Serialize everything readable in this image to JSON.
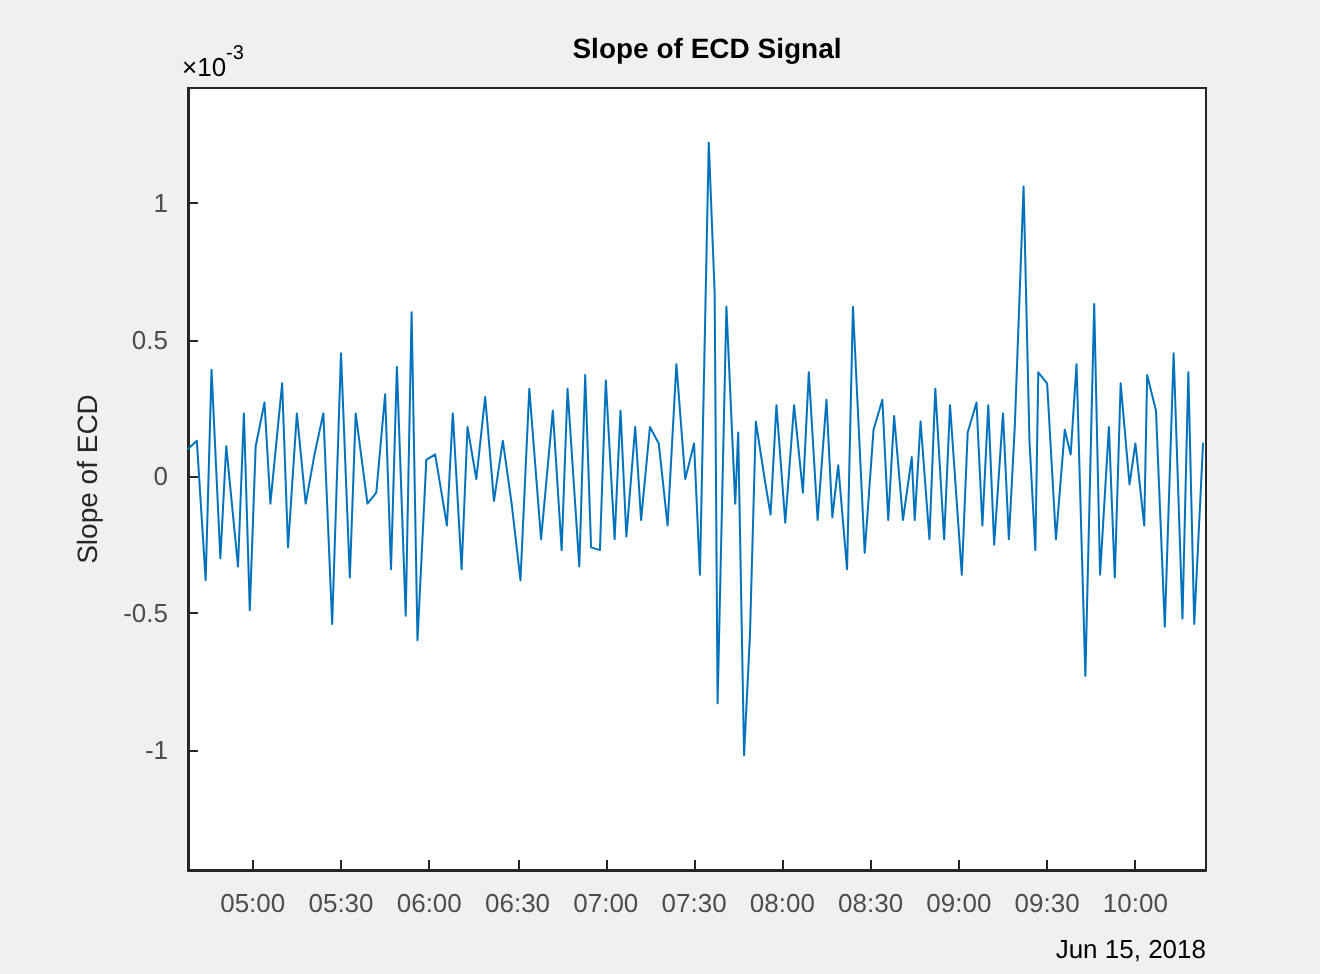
{
  "chart_data": {
    "type": "line",
    "title": "Slope of ECD Signal",
    "ylabel": "Slope of ECD",
    "annotations": [
      "×10$^{-3}$",
      "Jun 15, 2018"
    ],
    "x": [
      "2018-06-15T04:38",
      "2018-06-15T04:41",
      "2018-06-15T04:44",
      "2018-06-15T04:46",
      "2018-06-15T04:49",
      "2018-06-15T04:51",
      "2018-06-15T04:55",
      "2018-06-15T04:57",
      "2018-06-15T04:59",
      "2018-06-15T05:01",
      "2018-06-15T05:04",
      "2018-06-15T05:06",
      "2018-06-15T05:10",
      "2018-06-15T05:12",
      "2018-06-15T05:15",
      "2018-06-15T05:18",
      "2018-06-15T05:21",
      "2018-06-15T05:24",
      "2018-06-15T05:27",
      "2018-06-15T05:30",
      "2018-06-15T05:33",
      "2018-06-15T05:35",
      "2018-06-15T05:39",
      "2018-06-15T05:42",
      "2018-06-15T05:45",
      "2018-06-15T05:47",
      "2018-06-15T05:49",
      "2018-06-15T05:52",
      "2018-06-15T05:54",
      "2018-06-15T05:56",
      "2018-06-15T05:59",
      "2018-06-15T06:02",
      "2018-06-15T06:06",
      "2018-06-15T06:08",
      "2018-06-15T06:11",
      "2018-06-15T06:13",
      "2018-06-15T06:16",
      "2018-06-15T06:19",
      "2018-06-15T06:22",
      "2018-06-15T06:25",
      "2018-06-15T06:28",
      "2018-06-15T06:31",
      "2018-06-15T06:34",
      "2018-06-15T06:38",
      "2018-06-15T06:42",
      "2018-06-15T06:45",
      "2018-06-15T06:47",
      "2018-06-15T06:51",
      "2018-06-15T06:53",
      "2018-06-15T06:55",
      "2018-06-15T06:58",
      "2018-06-15T07:00",
      "2018-06-15T07:03",
      "2018-06-15T07:05",
      "2018-06-15T07:07",
      "2018-06-15T07:10",
      "2018-06-15T07:12",
      "2018-06-15T07:15",
      "2018-06-15T07:18",
      "2018-06-15T07:21",
      "2018-06-15T07:24",
      "2018-06-15T07:27",
      "2018-06-15T07:30",
      "2018-06-15T07:32",
      "2018-06-15T07:35",
      "2018-06-15T07:37",
      "2018-06-15T07:38",
      "2018-06-15T07:41",
      "2018-06-15T07:44",
      "2018-06-15T07:45",
      "2018-06-15T07:47",
      "2018-06-15T07:49",
      "2018-06-15T07:51",
      "2018-06-15T07:54",
      "2018-06-15T07:56",
      "2018-06-15T07:58",
      "2018-06-15T08:01",
      "2018-06-15T08:04",
      "2018-06-15T08:07",
      "2018-06-15T08:09",
      "2018-06-15T08:12",
      "2018-06-15T08:15",
      "2018-06-15T08:17",
      "2018-06-15T08:19",
      "2018-06-15T08:22",
      "2018-06-15T08:24",
      "2018-06-15T08:28",
      "2018-06-15T08:31",
      "2018-06-15T08:34",
      "2018-06-15T08:36",
      "2018-06-15T08:38",
      "2018-06-15T08:41",
      "2018-06-15T08:44",
      "2018-06-15T08:45",
      "2018-06-15T08:47",
      "2018-06-15T08:50",
      "2018-06-15T08:52",
      "2018-06-15T08:55",
      "2018-06-15T08:57",
      "2018-06-15T09:01",
      "2018-06-15T09:03",
      "2018-06-15T09:06",
      "2018-06-15T09:08",
      "2018-06-15T09:10",
      "2018-06-15T09:12",
      "2018-06-15T09:15",
      "2018-06-15T09:17",
      "2018-06-15T09:19",
      "2018-06-15T09:22",
      "2018-06-15T09:24",
      "2018-06-15T09:26",
      "2018-06-15T09:27",
      "2018-06-15T09:30",
      "2018-06-15T09:33",
      "2018-06-15T09:36",
      "2018-06-15T09:38",
      "2018-06-15T09:40",
      "2018-06-15T09:43",
      "2018-06-15T09:46",
      "2018-06-15T09:48",
      "2018-06-15T09:51",
      "2018-06-15T09:53",
      "2018-06-15T09:55",
      "2018-06-15T09:58",
      "2018-06-15T10:00",
      "2018-06-15T10:03",
      "2018-06-15T10:04",
      "2018-06-15T10:07",
      "2018-06-15T10:10",
      "2018-06-15T10:13",
      "2018-06-15T10:16",
      "2018-06-15T10:18",
      "2018-06-15T10:20",
      "2018-06-15T10:23"
    ],
    "series": [
      {
        "color": "#0072bd",
        "values": [
          0.1,
          0.13,
          -0.38,
          0.39,
          -0.3,
          0.11,
          -0.33,
          0.23,
          -0.49,
          0.11,
          0.27,
          -0.1,
          0.34,
          -0.26,
          0.23,
          -0.1,
          0.08,
          0.23,
          -0.54,
          0.45,
          -0.37,
          0.23,
          -0.1,
          -0.06,
          0.3,
          -0.34,
          0.4,
          -0.51,
          0.6,
          -0.6,
          0.06,
          0.08,
          -0.18,
          0.23,
          -0.34,
          0.18,
          -0.01,
          0.29,
          -0.09,
          0.13,
          -0.1,
          -0.38,
          0.32,
          -0.23,
          0.24,
          -0.27,
          0.32,
          -0.33,
          0.37,
          -0.26,
          -0.27,
          0.35,
          -0.23,
          0.24,
          -0.22,
          0.18,
          -0.16,
          0.18,
          0.12,
          -0.18,
          0.41,
          -0.01,
          0.12,
          -0.36,
          1.22,
          0.67,
          -0.83,
          0.62,
          -0.1,
          0.16,
          -1.02,
          -0.58,
          0.2,
          -0.01,
          -0.14,
          0.26,
          -0.17,
          0.26,
          -0.06,
          0.38,
          -0.16,
          0.28,
          -0.15,
          0.04,
          -0.34,
          0.62,
          -0.28,
          0.17,
          0.28,
          -0.16,
          0.22,
          -0.16,
          0.07,
          -0.16,
          0.2,
          -0.23,
          0.32,
          -0.23,
          0.26,
          -0.36,
          0.16,
          0.27,
          -0.18,
          0.26,
          -0.25,
          0.23,
          -0.23,
          0.18,
          1.06,
          0.13,
          -0.27,
          0.38,
          0.34,
          -0.23,
          0.17,
          0.08,
          0.41,
          -0.73,
          0.63,
          -0.36,
          0.18,
          -0.37,
          0.34,
          -0.03,
          0.12,
          -0.18,
          0.37,
          0.24,
          -0.55,
          0.45,
          -0.52,
          0.38,
          -0.54,
          0.12
        ]
      }
    ],
    "xlim": [
      "2018-06-15T04:38",
      "2018-06-15T10:24"
    ],
    "xticks": [
      {
        "value": "2018-06-15T05:00",
        "label": "05:00"
      },
      {
        "value": "2018-06-15T05:30",
        "label": "05:30"
      },
      {
        "value": "2018-06-15T06:00",
        "label": "06:00"
      },
      {
        "value": "2018-06-15T06:30",
        "label": "06:30"
      },
      {
        "value": "2018-06-15T07:00",
        "label": "07:00"
      },
      {
        "value": "2018-06-15T07:30",
        "label": "07:30"
      },
      {
        "value": "2018-06-15T08:00",
        "label": "08:00"
      },
      {
        "value": "2018-06-15T08:30",
        "label": "08:30"
      },
      {
        "value": "2018-06-15T09:00",
        "label": "09:00"
      },
      {
        "value": "2018-06-15T09:30",
        "label": "09:30"
      },
      {
        "value": "2018-06-15T10:00",
        "label": "10:00"
      }
    ],
    "ylim": [
      -1.44,
      1.42
    ],
    "yticks": [
      -1,
      -0.5,
      0,
      0.5,
      1
    ],
    "marker": "none",
    "line_style": "solid",
    "grid": false
  }
}
